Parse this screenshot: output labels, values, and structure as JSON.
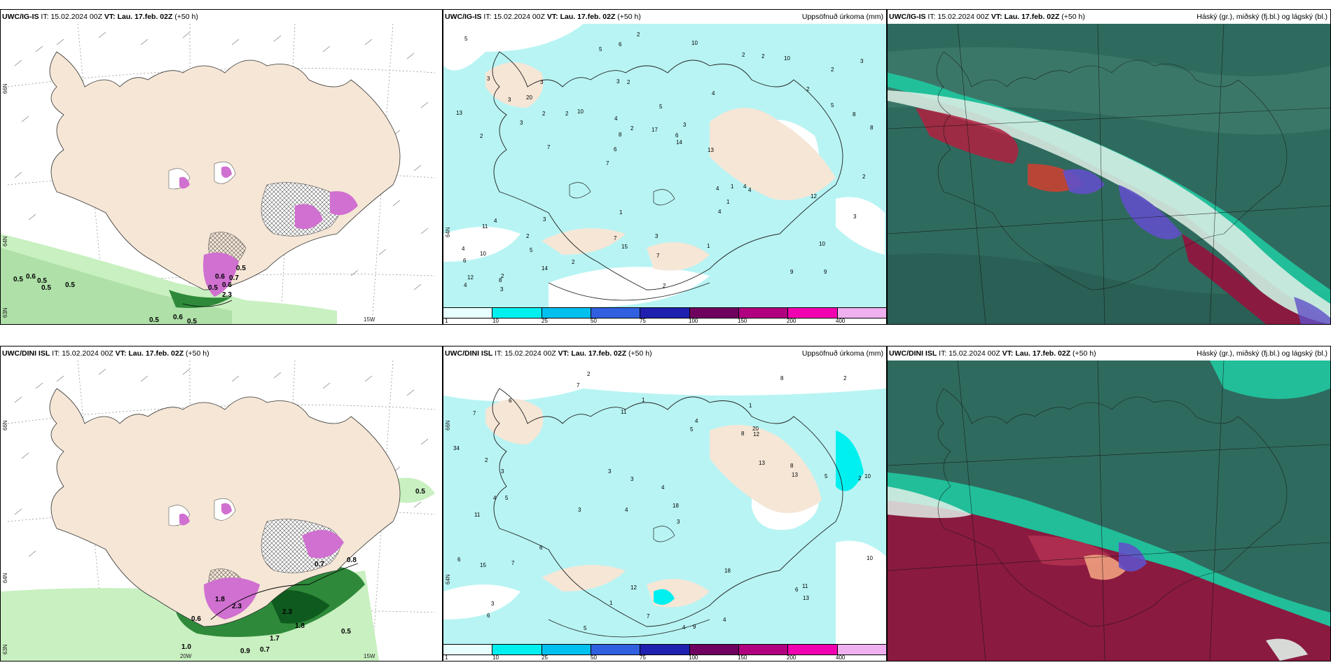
{
  "panels": [
    {
      "id": "ig-wind",
      "model": "UWC/IG-IS",
      "it_label": "IT:",
      "it_value": "15.02.2024 00Z",
      "vt_label": "VT:",
      "vt_value": "Lau. 17.feb. 02Z",
      "lead": "(+50 h)",
      "right_title": "",
      "lat_labels": [
        "66N",
        "64N",
        "63N"
      ],
      "lon_labels": [
        "15W"
      ],
      "values": [
        "0.5",
        "0.6",
        "0.5",
        "0.5",
        "0.5",
        "0.5",
        "0.6",
        "0.5",
        "0.6",
        "0.6",
        "0.7",
        "2.3",
        "0.5",
        "0.5"
      ]
    },
    {
      "id": "ig-precip",
      "model": "UWC/IG-IS",
      "it_label": "IT:",
      "it_value": "15.02.2024 00Z",
      "vt_label": "VT:",
      "vt_value": "Lau. 17.feb. 02Z",
      "lead": "(+50 h)",
      "right_title": "Uppsöfnuð úrkoma (mm)",
      "lat_labels": [
        "64N"
      ],
      "lon_labels": [],
      "numbers": [
        "9",
        "2",
        "2",
        "7",
        "4",
        "2",
        "3",
        "5",
        "4",
        "10",
        "6",
        "5",
        "2",
        "3",
        "4",
        "3",
        "6",
        "8",
        "4",
        "5",
        "6",
        "7",
        "8",
        "3",
        "2",
        "3",
        "9",
        "10",
        "4",
        "2",
        "2",
        "3",
        "4",
        "14",
        "8",
        "6",
        "12",
        "15",
        "14",
        "11",
        "2",
        "3",
        "1",
        "1",
        "2",
        "3",
        "4",
        "3",
        "10",
        "2",
        "7",
        "13",
        "20",
        "2",
        "8",
        "10",
        "5",
        "2",
        "3",
        "1",
        "2",
        "1",
        "2",
        "4",
        "5",
        "3",
        "2",
        "4",
        "7",
        "17",
        "10",
        "13",
        "12"
      ]
    },
    {
      "id": "ig-cloud",
      "model": "UWC/IG-IS",
      "it_label": "IT:",
      "it_value": "15.02.2024 00Z",
      "vt_label": "VT:",
      "vt_value": "Lau. 17.feb. 02Z",
      "lead": "(+50 h)",
      "right_title": "Háský (gr.), miðský (fj.bl.) og lágský (bl.)"
    },
    {
      "id": "dini-wind",
      "model": "UWC/DINI ISL",
      "it_label": "IT:",
      "it_value": "15.02.2024 00Z",
      "vt_label": "VT:",
      "vt_value": "Lau. 17.feb. 02Z",
      "lead": "(+50 h)",
      "right_title": "",
      "lat_labels": [
        "66N",
        "64N",
        "63N"
      ],
      "lon_labels": [
        "20W",
        "15W"
      ],
      "values": [
        "0.5",
        "0.7",
        "0.8",
        "1.8",
        "2.3",
        "0.6",
        "2.3",
        "1.8",
        "0.5",
        "1.0",
        "0.9",
        "0.7",
        "1.7"
      ]
    },
    {
      "id": "dini-precip",
      "model": "UWC/DINI ISL",
      "it_label": "IT:",
      "it_value": "15.02.2024 00Z",
      "vt_label": "VT:",
      "vt_value": "Lau. 17.feb. 02Z",
      "lead": "(+50 h)",
      "right_title": "Uppsöfnuð úrkoma (mm)",
      "lat_labels": [
        "66N",
        "64N"
      ],
      "lon_labels": [],
      "numbers": [
        "2",
        "1",
        "2",
        "4",
        "3",
        "5",
        "7",
        "8",
        "11",
        "5",
        "4",
        "6",
        "7",
        "3",
        "4",
        "9",
        "12",
        "8",
        "13",
        "6",
        "3",
        "4",
        "10",
        "5",
        "6",
        "2",
        "3",
        "13",
        "11",
        "15",
        "6",
        "4",
        "7",
        "3",
        "18",
        "10",
        "8",
        "1",
        "2",
        "1",
        "3",
        "5",
        "4",
        "6",
        "7",
        "12",
        "13",
        "20",
        "34",
        "18",
        "11"
      ]
    },
    {
      "id": "dini-cloud",
      "model": "UWC/DINI ISL",
      "it_label": "IT:",
      "it_value": "15.02.2024 00Z",
      "vt_label": "VT:",
      "vt_value": "Lau. 17.feb. 02Z",
      "lead": "(+50 h)",
      "right_title": "Háský (gr.), miðský (fj.bl.) og lágský (bl.)"
    }
  ],
  "colorbar": {
    "labels": [
      "1",
      "10",
      "25",
      "50",
      "75",
      "100",
      "150",
      "200",
      "400"
    ],
    "colors": [
      "#e8ffff",
      "#00f0f0",
      "#00c0f0",
      "#3060e0",
      "#2020b0",
      "#700060",
      "#b00080",
      "#f000b0",
      "#f0b0f0"
    ]
  },
  "colors": {
    "land": "#f5e6d6",
    "sea": "#ffffff",
    "precip_light": "#b8f4f4",
    "green_light": "#c8f0c0",
    "green_dark": "#2e8a3a",
    "snow_pink": "#d070d0",
    "cloud_base": "#2f6a5e",
    "cloud_teal": "#20c8a0",
    "cloud_red": "#b02040",
    "cloud_blue": "#6050c8"
  }
}
